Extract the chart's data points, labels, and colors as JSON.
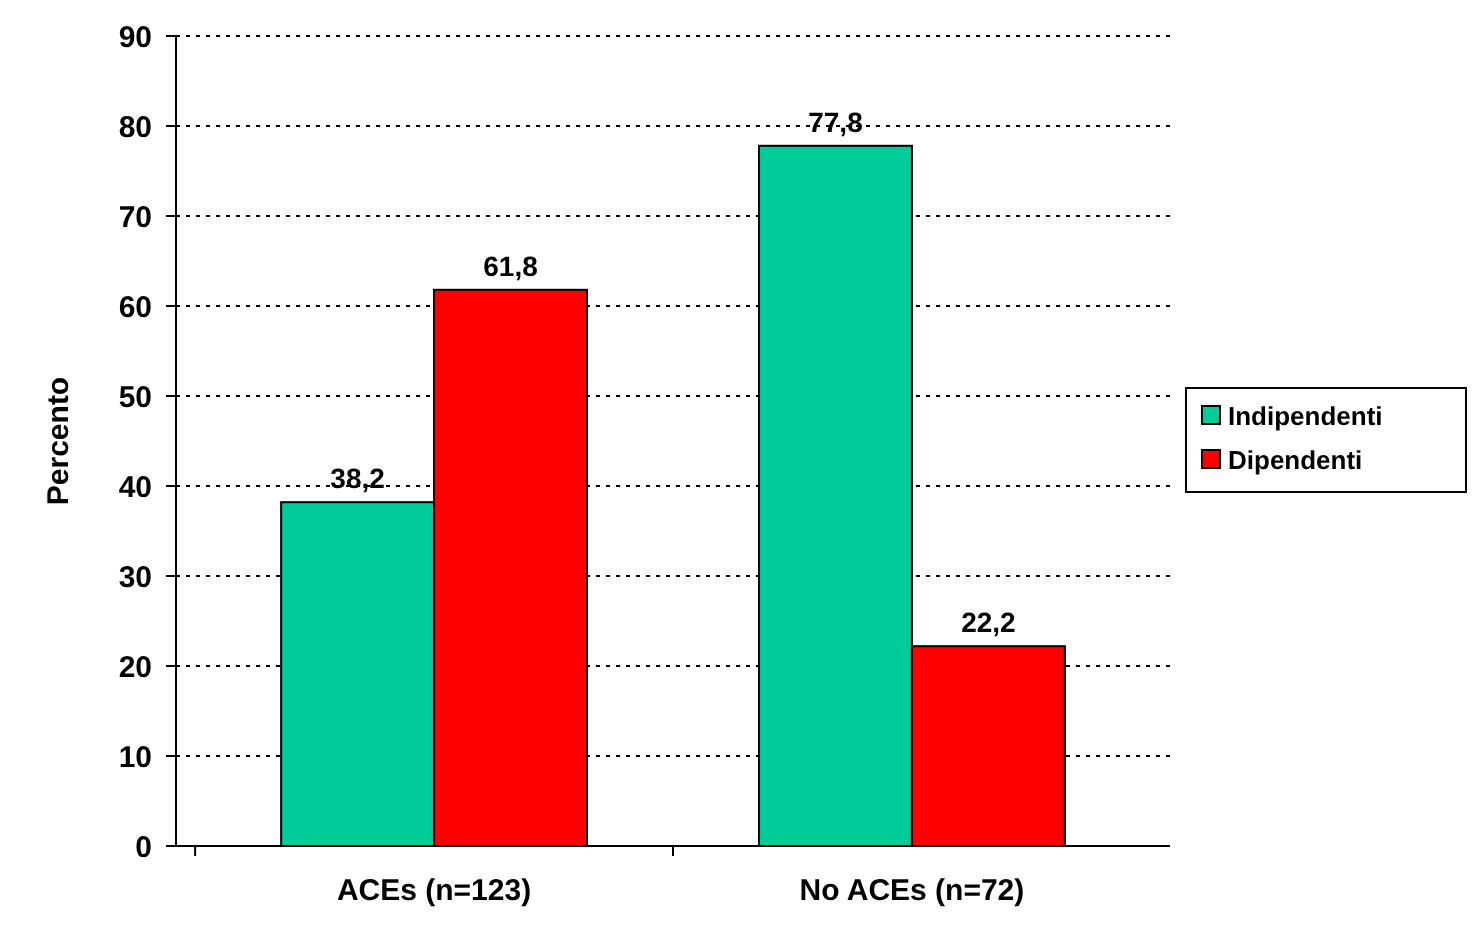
{
  "chart_data": {
    "type": "bar",
    "ylabel": "Percento",
    "categories": [
      "ACEs (n=123)",
      "No ACEs (n=72)"
    ],
    "series": [
      {
        "name": "Indipendenti",
        "color": "#00cc99",
        "values": [
          38.2,
          77.8
        ],
        "value_labels": [
          "38,2",
          "77,8"
        ]
      },
      {
        "name": "Dipendenti",
        "color": "#ff0000",
        "values": [
          61.8,
          22.2
        ],
        "value_labels": [
          "61,8",
          "22,2"
        ]
      }
    ],
    "ylim": [
      0,
      90
    ],
    "yticks": [
      0,
      10,
      20,
      30,
      40,
      50,
      60,
      70,
      80,
      90
    ],
    "grid": "y",
    "legend": "right"
  }
}
